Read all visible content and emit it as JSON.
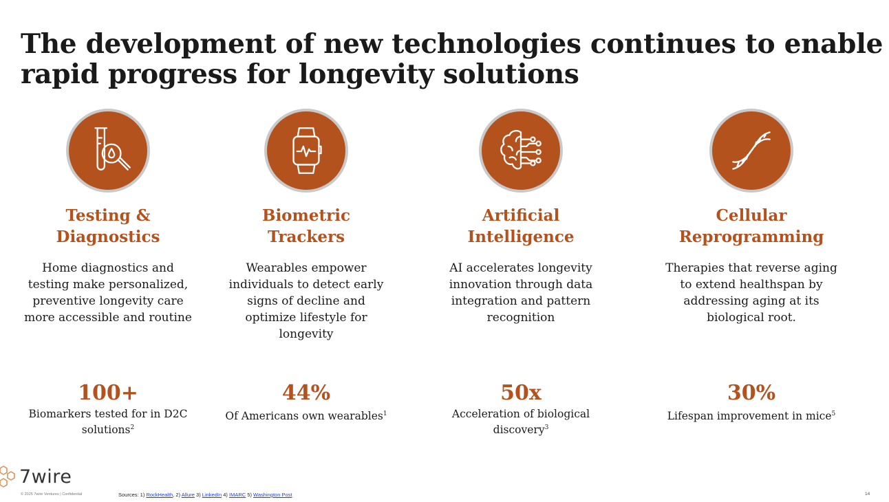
{
  "title": "The development of new technologies continues to enable rapid progress for longevity solutions",
  "accent_color": "#b4521e",
  "columns": [
    {
      "icon": "test-tube-magnifier-icon",
      "title_line1": "Testing &",
      "title_line2": "Diagnostics",
      "description": "Home diagnostics and testing make personalized, preventive longevity care more accessible and routine",
      "stat": "100+",
      "stat_label": "Biomarkers tested for in D2C solutions",
      "stat_ref": "2"
    },
    {
      "icon": "smartwatch-icon",
      "title_line1": "Biometric",
      "title_line2": "Trackers",
      "description": "Wearables empower individuals to detect early signs of decline and optimize lifestyle for longevity",
      "stat": "44%",
      "stat_label": "Of Americans own wearables",
      "stat_ref": "1"
    },
    {
      "icon": "ai-brain-icon",
      "title_line1": "Artificial",
      "title_line2": "Intelligence",
      "description": "AI accelerates longevity innovation through data integration and pattern recognition",
      "stat": "50x",
      "stat_label": "Acceleration of biological discovery",
      "stat_ref": "3"
    },
    {
      "icon": "dna-helix-icon",
      "title_line1": "Cellular",
      "title_line2": "Reprogramming",
      "description": "Therapies that reverse aging to extend healthspan by addressing aging at its biological root.",
      "stat": "30%",
      "stat_label": "Lifespan improvement in mice",
      "stat_ref": "5"
    }
  ],
  "footer": {
    "logo_text": "7wire",
    "copyright": "© 2025 7wire Ventures | Confidential",
    "sources_prefix": "Sources: 1)",
    "sources": [
      {
        "label": "RockHealth",
        "sep": ", 2)"
      },
      {
        "label": "Allure",
        "sep": " 3)"
      },
      {
        "label": "LinkedIn",
        "sep": " 4)"
      },
      {
        "label": "IMARC",
        "sep": " 5)"
      },
      {
        "label": "Washington Post",
        "sep": ""
      }
    ],
    "page_number": "14"
  }
}
